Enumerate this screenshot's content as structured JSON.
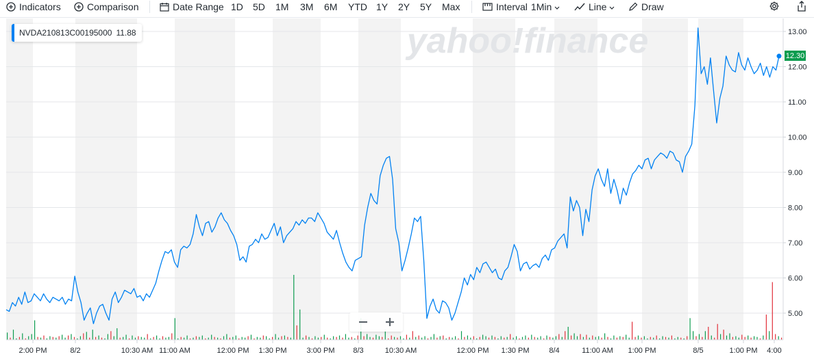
{
  "toolbar": {
    "indicators": "Indicators",
    "comparison": "Comparison",
    "date_range": "Date Range",
    "ranges": [
      "1D",
      "5D",
      "1M",
      "3M",
      "6M",
      "YTD",
      "1Y",
      "2Y",
      "5Y",
      "Max"
    ],
    "interval_label": "Interval",
    "interval_value": "1Min",
    "chart_type": "Line",
    "draw": "Draw",
    "icons": [
      "plus-circle-icon",
      "plus-circle-icon",
      "calendar-icon",
      "interval-icon",
      "line-chart-icon",
      "pencil-icon",
      "gear-icon",
      "share-icon"
    ]
  },
  "watermark": "yahoo!finance",
  "legend": {
    "symbol": "NVDA210813C00195000",
    "value": "11.88"
  },
  "last_price": "12.30",
  "zoom": {
    "minus": "−",
    "plus": "+"
  },
  "colors": {
    "line": "#0081f2",
    "up_volume": "#0d9c4f",
    "down_volume": "#e2313b",
    "badge": "#0d9c4f",
    "band": "#f3f3f3"
  },
  "chart_data": {
    "type": "line",
    "title": "",
    "xlabel": "",
    "ylabel": "",
    "ylim": [
      4.3,
      13.3
    ],
    "y_ticks": [
      "13.00",
      "12.00",
      "11.00",
      "10.00",
      "9.00",
      "8.00",
      "7.00",
      "6.00",
      "5.00"
    ],
    "x_ticks": [
      "2:00 PM",
      "8/2",
      "10:30 AM",
      "11:00 AM",
      "12:00 PM",
      "1:30 PM",
      "3:00 PM",
      "8/3",
      "10:30 AM",
      "12:00 PM",
      "1:30 PM",
      "8/4",
      "11:00 AM",
      "1:00 PM",
      "8/5",
      "1:00 PM",
      "4:00"
    ],
    "grid": true,
    "series": [
      {
        "values": [
          5.1,
          5.05,
          5.3,
          5.2,
          5.45,
          5.25,
          5.6,
          5.3,
          5.35,
          5.55,
          5.45,
          5.35,
          5.55,
          5.4,
          5.3,
          5.45,
          5.4,
          5.35,
          5.45,
          5.25,
          5.4,
          5.35,
          6.05,
          5.6,
          5.3,
          4.8,
          5.0,
          5.15,
          4.7,
          5.0,
          5.2,
          5.25,
          5.0,
          4.8,
          5.4,
          5.6,
          5.3,
          5.45,
          5.65,
          5.6,
          5.55,
          5.7,
          5.45,
          5.5,
          5.35,
          5.55,
          5.45,
          5.65,
          5.85,
          6.2,
          6.5,
          6.75,
          6.7,
          6.8,
          6.45,
          6.3,
          6.8,
          6.9,
          6.85,
          6.95,
          7.25,
          7.8,
          7.45,
          7.2,
          7.55,
          7.6,
          7.3,
          7.45,
          7.7,
          7.85,
          7.65,
          7.55,
          7.35,
          7.2,
          6.95,
          6.5,
          6.6,
          6.45,
          6.9,
          6.95,
          7.1,
          7.0,
          7.25,
          7.1,
          7.15,
          7.35,
          7.55,
          7.2,
          7.45,
          7.0,
          7.2,
          7.3,
          7.4,
          7.6,
          7.5,
          7.65,
          7.55,
          7.7,
          7.7,
          7.6,
          7.85,
          7.7,
          7.55,
          7.3,
          7.2,
          7.1,
          7.35,
          7.0,
          6.7,
          6.45,
          6.3,
          6.2,
          6.5,
          6.55,
          6.6,
          7.5,
          8.0,
          8.4,
          8.2,
          8.1,
          8.9,
          9.2,
          9.4,
          9.45,
          8.8,
          7.4,
          7.0,
          6.2,
          6.5,
          6.85,
          7.25,
          7.7,
          7.6,
          7.75,
          6.5,
          4.85,
          5.2,
          5.4,
          5.1,
          5.0,
          5.35,
          5.3,
          5.15,
          4.8,
          5.0,
          5.3,
          5.6,
          6.0,
          5.8,
          6.1,
          5.95,
          6.3,
          6.15,
          6.4,
          6.45,
          6.3,
          6.15,
          6.25,
          6.0,
          5.95,
          6.2,
          6.3,
          6.6,
          6.95,
          6.75,
          6.2,
          6.4,
          6.45,
          6.25,
          6.35,
          6.4,
          6.3,
          6.55,
          6.65,
          6.5,
          6.8,
          6.85,
          7.05,
          7.15,
          7.25,
          6.85,
          8.3,
          7.9,
          8.2,
          8.0,
          7.2,
          7.95,
          7.6,
          8.5,
          8.9,
          9.1,
          8.8,
          8.6,
          9.1,
          8.4,
          8.8,
          8.5,
          8.1,
          8.55,
          8.35,
          8.7,
          8.95,
          9.05,
          9.2,
          9.1,
          9.35,
          9.4,
          9.1,
          9.35,
          9.45,
          9.55,
          9.5,
          9.4,
          9.6,
          9.55,
          9.35,
          9.3,
          9.0,
          9.45,
          9.6,
          9.8,
          10.9,
          13.1,
          11.8,
          12.0,
          11.5,
          12.25,
          11.3,
          10.4,
          11.1,
          11.45,
          12.3,
          12.05,
          11.9,
          11.85,
          12.4,
          12.05,
          11.9,
          12.25,
          12.0,
          11.8,
          11.9,
          12.1,
          11.75,
          12.0,
          11.7,
          12.0,
          11.9,
          12.3
        ]
      }
    ],
    "volume": [
      10,
      3,
      14,
      2,
      4,
      9,
      2,
      5,
      8,
      27,
      4,
      3,
      6,
      2,
      5,
      4,
      3,
      5,
      7,
      3,
      6,
      8,
      4,
      2,
      5,
      9,
      11,
      3,
      14,
      4,
      6,
      3,
      2,
      8,
      12,
      5,
      16,
      3,
      4,
      7,
      2,
      6,
      3,
      5,
      4,
      3,
      8,
      2,
      4,
      6,
      2,
      5,
      3,
      4,
      9,
      30,
      2,
      4,
      3,
      6,
      2,
      3,
      5,
      4,
      6,
      2,
      3,
      7,
      4,
      3,
      2,
      5,
      8,
      3,
      4,
      6,
      2,
      4,
      3,
      5,
      7,
      2,
      4,
      3,
      6,
      5,
      2,
      4,
      8,
      3,
      5,
      6,
      4,
      3,
      90,
      20,
      42,
      3,
      6,
      4,
      2,
      5,
      3,
      4,
      7,
      3,
      2,
      5,
      4,
      6,
      3,
      8,
      3,
      4,
      2,
      6,
      30,
      5,
      8,
      4,
      3,
      7,
      5,
      4,
      14,
      2,
      6,
      4,
      3,
      5,
      2,
      7,
      3,
      12,
      4,
      6,
      3,
      5,
      2,
      4,
      8,
      3,
      5,
      6,
      2,
      4,
      3,
      5,
      2,
      12,
      4,
      6,
      3,
      5,
      2,
      4,
      7,
      5,
      3,
      6,
      4,
      2,
      5,
      3,
      4,
      8,
      3,
      5,
      2,
      4,
      6,
      3,
      7,
      4,
      3,
      5,
      2,
      6,
      4,
      3,
      5,
      8,
      4,
      12,
      18,
      6,
      9,
      5,
      8,
      4,
      7,
      3,
      6,
      4,
      5,
      3,
      9,
      4,
      2,
      6,
      3,
      5,
      4,
      7,
      3,
      25,
      4,
      6,
      3,
      5,
      2,
      4,
      3,
      6,
      2,
      5,
      4,
      3,
      6,
      2,
      4,
      3,
      2,
      5,
      30,
      12,
      5,
      8,
      4,
      12,
      18,
      6,
      3,
      22,
      8,
      14,
      6,
      9,
      4,
      5,
      3,
      7,
      4,
      6,
      3,
      5,
      4,
      2,
      6,
      35,
      12,
      80,
      8,
      5,
      3
    ],
    "volume_up": [
      true,
      false,
      true,
      true,
      false,
      true,
      false,
      true,
      true,
      true,
      false,
      true,
      false,
      true,
      true,
      false,
      true,
      false,
      true,
      true,
      false,
      true,
      false,
      true,
      true,
      false,
      true,
      false,
      true,
      false,
      true,
      false,
      true,
      true,
      false,
      true,
      true,
      false,
      true,
      true,
      false,
      true,
      true,
      false,
      true,
      true,
      false,
      true,
      false,
      true,
      true,
      false,
      true,
      true,
      false,
      true,
      true,
      false,
      true,
      true,
      false,
      true,
      false,
      true,
      true,
      false,
      true,
      true,
      false,
      true,
      false,
      true,
      true,
      false,
      true,
      true,
      false,
      true,
      true,
      false,
      true,
      false,
      true,
      true,
      false,
      true,
      true,
      false,
      true,
      true,
      false,
      true,
      false,
      true,
      true,
      false,
      true,
      true,
      false,
      true,
      false,
      true,
      true,
      false,
      true,
      false,
      true,
      true,
      false,
      true,
      false,
      true,
      true,
      false,
      true,
      false,
      true,
      false,
      true,
      true,
      false,
      true,
      true,
      false,
      true,
      false,
      false,
      true,
      false,
      true,
      true,
      false,
      true,
      false,
      true,
      false,
      true,
      true,
      false,
      true,
      true,
      false,
      true,
      false,
      true,
      false,
      true,
      true,
      false,
      true,
      false,
      true,
      true,
      false,
      true,
      false,
      true,
      true,
      false,
      true,
      false,
      true,
      true,
      false,
      true,
      false,
      true,
      true,
      false,
      true,
      true,
      false,
      true,
      false,
      true,
      true,
      false,
      true,
      false,
      true,
      true,
      false,
      true,
      false,
      true,
      false,
      true,
      true,
      false,
      true,
      false,
      true,
      false,
      true,
      true,
      false,
      true,
      false,
      true,
      true,
      false,
      true,
      false,
      true,
      true,
      false,
      false,
      true,
      false,
      true,
      true,
      false,
      true,
      false,
      true,
      true,
      false,
      true,
      false,
      true,
      true,
      false,
      true,
      false,
      true,
      true,
      false,
      true,
      false,
      true,
      false,
      true,
      false,
      false,
      true,
      false,
      true,
      true,
      false,
      true,
      true,
      false,
      false,
      true,
      false,
      true,
      true,
      false,
      true,
      false,
      true,
      false,
      false,
      true,
      false
    ]
  }
}
